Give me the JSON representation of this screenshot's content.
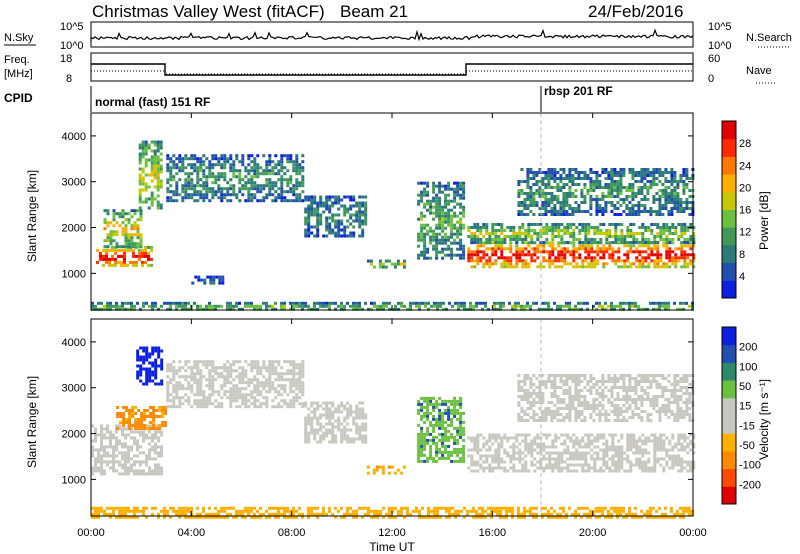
{
  "title": {
    "station": "Christmas Valley West (fitACF)",
    "beam": "Beam 21",
    "date": "24/Feb/2016"
  },
  "strip_panels": {
    "nsky": {
      "label": "N.Sky",
      "right_label": "N.Search",
      "ticks": [
        "10^5",
        "10^0"
      ]
    },
    "freq": {
      "label": "Freq.",
      "unit": "[MHz]",
      "ticks": [
        "18",
        "8"
      ],
      "right_label": "Nave",
      "right_ticks": [
        "60",
        "0"
      ]
    },
    "cpid": {
      "label": "CPID",
      "modes": [
        "normal (fast) 151 RF",
        "rbsp 201 RF"
      ]
    }
  },
  "x_axis": {
    "label": "Time UT",
    "ticks": [
      "00:00",
      "04:00",
      "08:00",
      "12:00",
      "16:00",
      "20:00",
      "00:00"
    ]
  },
  "chart_data": [
    {
      "type": "heatmap",
      "name": "power-panel",
      "xlabel": "Time UT",
      "ylabel": "Slant Range [km]",
      "xlim": [
        0,
        24
      ],
      "ylim": [
        200,
        4500
      ],
      "yticks": [
        1000,
        2000,
        3000,
        4000
      ],
      "colorbar": {
        "label": "Power [dB]",
        "ticks": [
          "28",
          "24",
          "20",
          "16",
          "12",
          "8",
          "4"
        ],
        "colors": [
          "#0b1fe0",
          "#214fb0",
          "#2c7a7a",
          "#3f9a5a",
          "#6cc040",
          "#c8c800",
          "#ffb000",
          "#ff7800",
          "#ff2a00",
          "#e00000"
        ]
      },
      "echo_regions": [
        {
          "t0": 0.2,
          "t1": 2.4,
          "r_lo": 1150,
          "r_hi": 1600,
          "level": 0.85
        },
        {
          "t0": 0.5,
          "t1": 2.0,
          "r_lo": 1600,
          "r_hi": 2400,
          "level": 0.55
        },
        {
          "t0": 1.9,
          "t1": 2.8,
          "r_lo": 2400,
          "r_hi": 3900,
          "level": 0.5
        },
        {
          "t0": 3.0,
          "t1": 8.5,
          "r_lo": 2600,
          "r_hi": 3600,
          "level": 0.3
        },
        {
          "t0": 8.5,
          "t1": 11.0,
          "r_lo": 1800,
          "r_hi": 2700,
          "level": 0.25
        },
        {
          "t0": 4.0,
          "t1": 5.2,
          "r_lo": 800,
          "r_hi": 950,
          "level": 0.15
        },
        {
          "t0": 11.0,
          "t1": 12.5,
          "r_lo": 1150,
          "r_hi": 1300,
          "level": 0.45
        },
        {
          "t0": 13.0,
          "t1": 14.9,
          "r_lo": 1300,
          "r_hi": 3000,
          "level": 0.35
        },
        {
          "t0": 15.0,
          "t1": 24.0,
          "r_lo": 1150,
          "r_hi": 1700,
          "level": 0.85
        },
        {
          "t0": 15.0,
          "t1": 24.0,
          "r_lo": 1700,
          "r_hi": 2100,
          "level": 0.45
        },
        {
          "t0": 17.0,
          "t1": 24.0,
          "r_lo": 2300,
          "r_hi": 3300,
          "level": 0.3
        },
        {
          "t0": 0.0,
          "t1": 24.0,
          "r_lo": 200,
          "r_hi": 380,
          "level": 0.4
        }
      ]
    },
    {
      "type": "heatmap",
      "name": "velocity-panel",
      "xlabel": "Time UT",
      "ylabel": "Slant Range [km]",
      "xlim": [
        0,
        24
      ],
      "ylim": [
        200,
        4500
      ],
      "yticks": [
        1000,
        2000,
        3000,
        4000
      ],
      "colorbar": {
        "label": "Velocity [m s⁻¹]",
        "ticks": [
          "200",
          "100",
          "50",
          "15",
          "-15",
          "-50",
          "-100",
          "-200"
        ],
        "colors": [
          "#e00000",
          "#ff4a00",
          "#ff8a00",
          "#ffb000",
          "#c8c8c0",
          "#c8c8c0",
          "#6cc040",
          "#2c8a6a",
          "#214fb0",
          "#0b1fe0"
        ]
      },
      "echo_regions": [
        {
          "t0": 0.0,
          "t1": 2.8,
          "r_lo": 1100,
          "r_hi": 2200,
          "v": 0
        },
        {
          "t0": 1.8,
          "t1": 2.8,
          "r_lo": 3100,
          "r_hi": 3900,
          "v": 180
        },
        {
          "t0": 1.0,
          "t1": 3.0,
          "r_lo": 2100,
          "r_hi": 2600,
          "v": -60
        },
        {
          "t0": 3.0,
          "t1": 8.5,
          "r_lo": 2600,
          "r_hi": 3600,
          "v": 0
        },
        {
          "t0": 8.5,
          "t1": 11.0,
          "r_lo": 1800,
          "r_hi": 2700,
          "v": 0
        },
        {
          "t0": 11.0,
          "t1": 12.5,
          "r_lo": 1150,
          "r_hi": 1300,
          "v": -40
        },
        {
          "t0": 13.0,
          "t1": 14.9,
          "r_lo": 1400,
          "r_hi": 2800,
          "v": 40
        },
        {
          "t0": 15.0,
          "t1": 24.0,
          "r_lo": 1200,
          "r_hi": 2000,
          "v": 0
        },
        {
          "t0": 17.0,
          "t1": 24.0,
          "r_lo": 2300,
          "r_hi": 3300,
          "v": 0
        },
        {
          "t0": 0.0,
          "t1": 24.0,
          "r_lo": 200,
          "r_hi": 400,
          "v": -30
        }
      ]
    }
  ]
}
